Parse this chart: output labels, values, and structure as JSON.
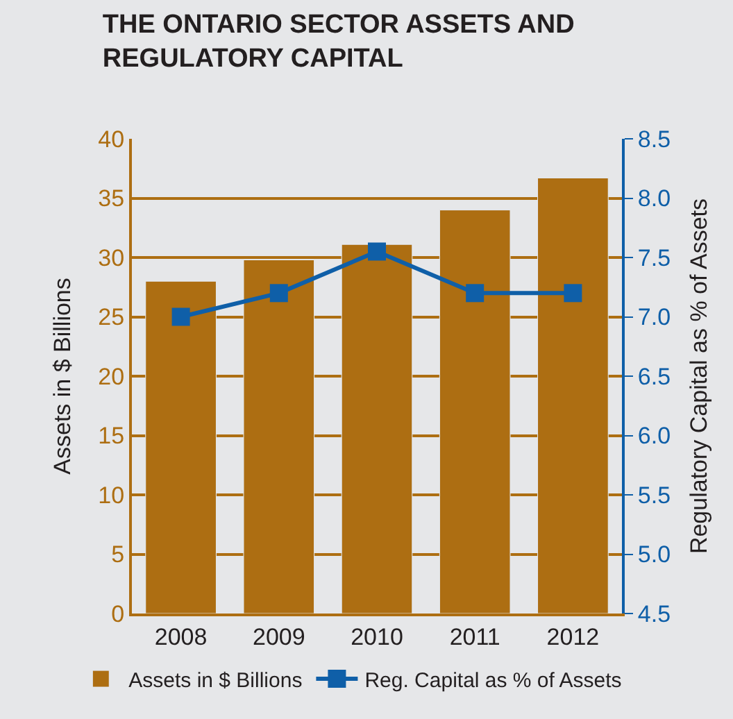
{
  "chart_data": {
    "type": "bar",
    "title": "THE ONTARIO SECTOR ASSETS AND\nREGULATORY CAPITAL",
    "ylabel": "Assets in $ Billions",
    "y2label": "Regulatory Capital as % of Assets",
    "categories": [
      "2008",
      "2009",
      "2010",
      "2011",
      "2012"
    ],
    "series": [
      {
        "name": "Assets in $ Billions",
        "color": "#ad6e12",
        "values": [
          28.0,
          29.8,
          31.1,
          34.0,
          36.7
        ]
      },
      {
        "name": "Reg. Capital as % of Assets",
        "type": "line",
        "axis": "y2",
        "color": "#0f5fa8",
        "marker": "square",
        "values": [
          7.0,
          7.2,
          7.55,
          7.2,
          7.2
        ]
      }
    ],
    "ylim": [
      0,
      40
    ],
    "yticks": [
      0,
      5,
      10,
      15,
      20,
      25,
      30,
      35,
      40
    ],
    "y2lim": [
      4.5,
      8.5
    ],
    "y2ticks": [
      {
        "value": 4.5,
        "label": "4.5"
      },
      {
        "value": 5.0,
        "label": "5.0"
      },
      {
        "value": 5.5,
        "label": "5.5"
      },
      {
        "value": 6.0,
        "label": "6.0"
      },
      {
        "value": 6.5,
        "label": "6.5"
      },
      {
        "value": 7.0,
        "label": "7.0"
      },
      {
        "value": 7.5,
        "label": "7.5"
      },
      {
        "value": 8.0,
        "label": "8.0"
      },
      {
        "value": 8.5,
        "label": "8.5"
      }
    ],
    "grid": "y",
    "legend": "bottom"
  }
}
